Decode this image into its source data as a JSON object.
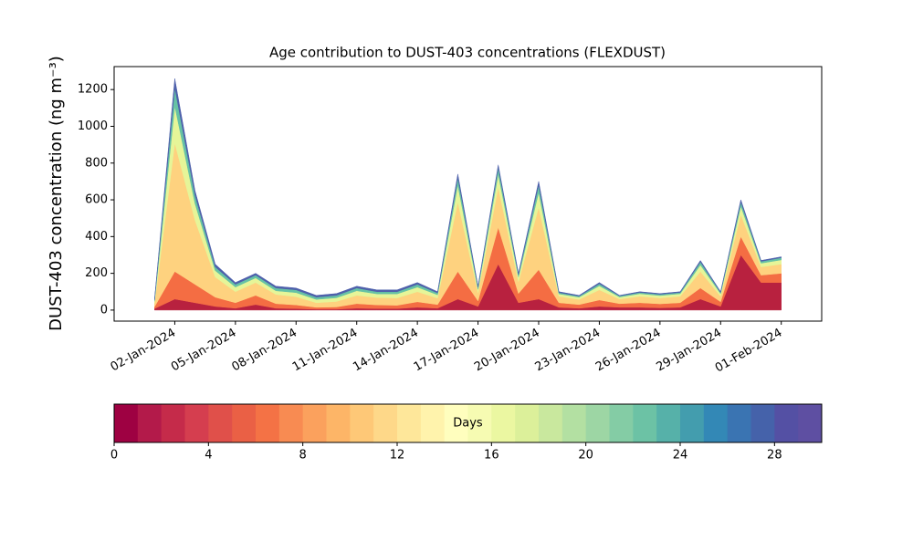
{
  "chart_data": {
    "type": "stacked_area",
    "title": "Age contribution to DUST-403 concentrations (FLEXDUST)",
    "y_label": "DUST-403 concentration (ng m⁻³)",
    "x": [
      "2024-01-01",
      "2024-01-02",
      "2024-01-03",
      "2024-01-04",
      "2024-01-05",
      "2024-01-06",
      "2024-01-07",
      "2024-01-08",
      "2024-01-09",
      "2024-01-10",
      "2024-01-11",
      "2024-01-12",
      "2024-01-13",
      "2024-01-14",
      "2024-01-15",
      "2024-01-16",
      "2024-01-17",
      "2024-01-18",
      "2024-01-19",
      "2024-01-20",
      "2024-01-21",
      "2024-01-22",
      "2024-01-23",
      "2024-01-24",
      "2024-01-25",
      "2024-01-26",
      "2024-01-27",
      "2024-01-28",
      "2024-01-29",
      "2024-01-30",
      "2024-01-31",
      "2024-02-01"
    ],
    "xlim": [
      "2023-12-30",
      "2024-02-03"
    ],
    "xticks": [
      {
        "value": "2024-01-02",
        "label": "02-Jan-2024"
      },
      {
        "value": "2024-01-05",
        "label": "05-Jan-2024"
      },
      {
        "value": "2024-01-08",
        "label": "08-Jan-2024"
      },
      {
        "value": "2024-01-11",
        "label": "11-Jan-2024"
      },
      {
        "value": "2024-01-14",
        "label": "14-Jan-2024"
      },
      {
        "value": "2024-01-17",
        "label": "17-Jan-2024"
      },
      {
        "value": "2024-01-20",
        "label": "20-Jan-2024"
      },
      {
        "value": "2024-01-23",
        "label": "23-Jan-2024"
      },
      {
        "value": "2024-01-26",
        "label": "26-Jan-2024"
      },
      {
        "value": "2024-01-29",
        "label": "29-Jan-2024"
      },
      {
        "value": "2024-02-01",
        "label": "01-Feb-2024"
      }
    ],
    "ylim": [
      -60,
      1325
    ],
    "yticks": [
      0,
      200,
      400,
      600,
      800,
      1000,
      1200
    ],
    "series": [
      {
        "color": "#b8213f",
        "values": [
          8,
          60,
          40,
          20,
          10,
          30,
          10,
          8,
          5,
          5,
          10,
          8,
          8,
          15,
          10,
          60,
          20,
          250,
          40,
          60,
          15,
          10,
          20,
          15,
          15,
          12,
          15,
          60,
          20,
          300,
          150,
          150
        ]
      },
      {
        "color": "#f46d43",
        "values": [
          10,
          150,
          100,
          50,
          30,
          50,
          25,
          20,
          10,
          12,
          25,
          20,
          18,
          30,
          20,
          150,
          30,
          200,
          50,
          160,
          25,
          20,
          35,
          20,
          25,
          22,
          25,
          60,
          25,
          100,
          40,
          50
        ]
      },
      {
        "color": "#fed27f",
        "values": [
          20,
          700,
          350,
          110,
          60,
          70,
          50,
          45,
          25,
          30,
          45,
          40,
          40,
          55,
          35,
          380,
          45,
          220,
          65,
          340,
          35,
          28,
          55,
          25,
          35,
          32,
          35,
          90,
          30,
          120,
          45,
          50
        ]
      },
      {
        "color": "#e6f598",
        "values": [
          10,
          200,
          90,
          35,
          25,
          25,
          20,
          22,
          18,
          20,
          25,
          20,
          22,
          25,
          18,
          90,
          18,
          70,
          25,
          80,
          13,
          12,
          22,
          11,
          14,
          13,
          14,
          35,
          14,
          45,
          20,
          23
        ]
      },
      {
        "color": "#66c2a5",
        "values": [
          7,
          100,
          45,
          20,
          15,
          15,
          15,
          15,
          12,
          13,
          15,
          12,
          12,
          15,
          10,
          40,
          10,
          35,
          12,
          40,
          7,
          6,
          11,
          6,
          7,
          7,
          7,
          17,
          7,
          23,
          10,
          12
        ]
      },
      {
        "color": "#4e60ab",
        "values": [
          5,
          50,
          25,
          15,
          10,
          10,
          10,
          10,
          10,
          10,
          10,
          10,
          10,
          10,
          7,
          20,
          7,
          15,
          8,
          20,
          5,
          4,
          7,
          3,
          4,
          4,
          4,
          8,
          4,
          12,
          5,
          5
        ]
      }
    ],
    "colorbar": {
      "label": "Days",
      "lim": [
        0,
        30
      ],
      "ticks": [
        0,
        4,
        8,
        12,
        16,
        20,
        24,
        28
      ],
      "colors": [
        "#9e0142",
        "#b31a4a",
        "#c52b4a",
        "#d53e4f",
        "#e0504a",
        "#ea6045",
        "#f47245",
        "#f88b52",
        "#fba15d",
        "#fdb567",
        "#fec877",
        "#fed889",
        "#fee79a",
        "#fff3ac",
        "#fffebe",
        "#f6fbb2",
        "#ebf7a1",
        "#dcf09a",
        "#c9e89e",
        "#b3e0a2",
        "#9dd6a4",
        "#84cca5",
        "#6cc2a5",
        "#56b1a9",
        "#439dae",
        "#3388b6",
        "#3a74b2",
        "#4562aa",
        "#5450a4",
        "#5e4fa2"
      ]
    }
  }
}
